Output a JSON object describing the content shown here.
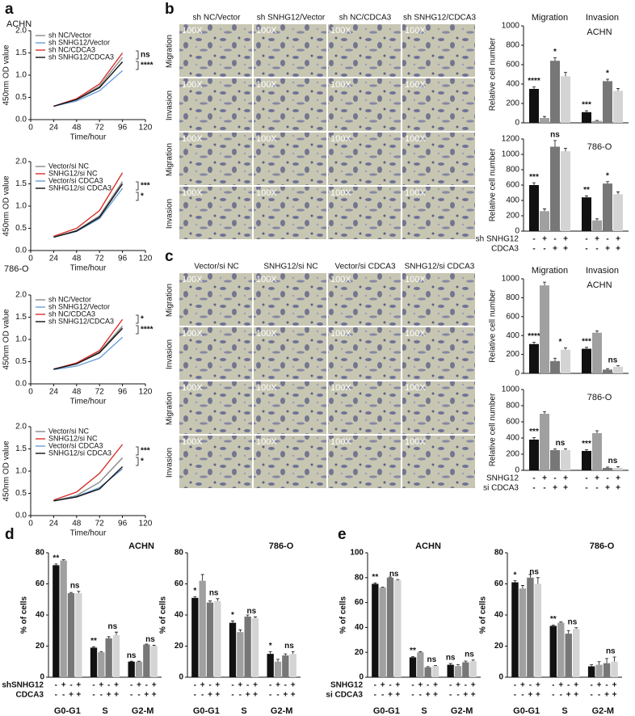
{
  "panel_labels": [
    "a",
    "b",
    "c",
    "d",
    "e"
  ],
  "micrographs": {
    "magnification": "100X",
    "b": {
      "columns": [
        "sh NC/Vector",
        "sh SNHG12/Vector",
        "sh NC/CDCA3",
        "sh SNHG12/CDCA3"
      ],
      "rows": [
        "Migration",
        "Invasion",
        "Migration",
        "Invasion"
      ]
    },
    "c": {
      "columns": [
        "Vector/si NC",
        "SNHG12/si NC",
        "Vector/si CDCA3",
        "SNHG12/si CDCA3"
      ],
      "rows": [
        "Migration",
        "Invasion",
        "Migration",
        "Invasion"
      ]
    }
  },
  "chart_data": [
    {
      "type": "line",
      "title": "ACHN",
      "xlabel": "Time/hour",
      "ylabel": "450nm OD value",
      "x": [
        24,
        48,
        72,
        96
      ],
      "xlim": [
        0,
        120
      ],
      "xticks": [
        0,
        24,
        48,
        72,
        96,
        120
      ],
      "ylim": [
        0,
        2
      ],
      "yticks": [
        {
          "value": 0,
          "label": "0.0"
        },
        {
          "value": 0.5,
          "label": "0.5"
        },
        {
          "value": 1,
          "label": "1.0"
        },
        {
          "value": 1.5,
          "label": "1.5"
        },
        {
          "value": 2,
          "label": "2.0"
        }
      ],
      "annotations": [
        "ns",
        "****"
      ],
      "series": [
        {
          "name": "sh NC/Vector",
          "color": "#8a8a8a",
          "values": [
            0.3,
            0.45,
            0.75,
            1.4
          ]
        },
        {
          "name": "sh SNHG12/Vector",
          "color": "#6a9fd8",
          "values": [
            0.3,
            0.42,
            0.65,
            1.1
          ]
        },
        {
          "name": "sh NC/CDCA3",
          "color": "#d9302a",
          "values": [
            0.3,
            0.47,
            0.8,
            1.5
          ]
        },
        {
          "name": "sh SNHG12/CDCA3",
          "color": "#111111",
          "values": [
            0.3,
            0.45,
            0.72,
            1.3
          ]
        }
      ]
    },
    {
      "type": "line",
      "xlabel": "Time/hour",
      "ylabel": "450nm OD value",
      "x": [
        24,
        48,
        72,
        96
      ],
      "xlim": [
        0,
        120
      ],
      "xticks": [
        0,
        24,
        48,
        72,
        96,
        120
      ],
      "ylim": [
        0,
        2
      ],
      "yticks": [
        {
          "value": 0,
          "label": "0.0"
        },
        {
          "value": 0.5,
          "label": "0.5"
        },
        {
          "value": 1,
          "label": "1.0"
        },
        {
          "value": 1.5,
          "label": "1.5"
        },
        {
          "value": 2,
          "label": "2.0"
        }
      ],
      "annotations": [
        "***",
        "*"
      ],
      "series": [
        {
          "name": "Vector/si NC",
          "color": "#8a8a8a",
          "values": [
            0.3,
            0.45,
            0.78,
            1.55
          ]
        },
        {
          "name": "SNHG12/si NC",
          "color": "#d9302a",
          "values": [
            0.32,
            0.5,
            0.9,
            1.75
          ]
        },
        {
          "name": "Vector/si CDCA3",
          "color": "#6a9fd8",
          "values": [
            0.3,
            0.43,
            0.72,
            1.4
          ]
        },
        {
          "name": "SNHG12/si CDCA3",
          "color": "#111111",
          "values": [
            0.3,
            0.44,
            0.75,
            1.5
          ]
        }
      ]
    },
    {
      "type": "line",
      "title": "786-O",
      "xlabel": "Time/hour",
      "ylabel": "450nm OD value",
      "x": [
        24,
        48,
        72,
        96
      ],
      "xlim": [
        0,
        120
      ],
      "xticks": [
        0,
        24,
        48,
        72,
        96,
        120
      ],
      "ylim": [
        0,
        2
      ],
      "yticks": [
        {
          "value": 0,
          "label": "0.0"
        },
        {
          "value": 0.5,
          "label": "0.5"
        },
        {
          "value": 1,
          "label": "1.0"
        },
        {
          "value": 1.5,
          "label": "1.5"
        },
        {
          "value": 2,
          "label": "2.0"
        }
      ],
      "annotations": [
        "*",
        "****"
      ],
      "series": [
        {
          "name": "sh NC/Vector",
          "color": "#8a8a8a",
          "values": [
            0.33,
            0.45,
            0.72,
            1.3
          ]
        },
        {
          "name": "sh SNHG12/Vector",
          "color": "#6a9fd8",
          "values": [
            0.32,
            0.4,
            0.58,
            1.05
          ]
        },
        {
          "name": "sh NC/CDCA3",
          "color": "#d9302a",
          "values": [
            0.33,
            0.47,
            0.75,
            1.45
          ]
        },
        {
          "name": "sh SNHG12/CDCA3",
          "color": "#111111",
          "values": [
            0.33,
            0.45,
            0.7,
            1.25
          ]
        }
      ]
    },
    {
      "type": "line",
      "xlabel": "Time/hour",
      "ylabel": "450nm OD value",
      "x": [
        24,
        48,
        72,
        96
      ],
      "xlim": [
        0,
        120
      ],
      "xticks": [
        0,
        24,
        48,
        72,
        96,
        120
      ],
      "ylim": [
        0,
        2
      ],
      "yticks": [
        {
          "value": 0,
          "label": "0.0"
        },
        {
          "value": 0.5,
          "label": "0.5"
        },
        {
          "value": 1,
          "label": "1.0"
        },
        {
          "value": 1.5,
          "label": "1.5"
        },
        {
          "value": 2,
          "label": "2.0"
        }
      ],
      "annotations": [
        "***",
        "*"
      ],
      "series": [
        {
          "name": "Vector/si NC",
          "color": "#8a8a8a",
          "values": [
            0.33,
            0.45,
            0.75,
            1.3
          ]
        },
        {
          "name": "SNHG12/si NC",
          "color": "#d9302a",
          "values": [
            0.35,
            0.53,
            0.95,
            1.6
          ]
        },
        {
          "name": "Vector/si CDCA3",
          "color": "#6a9fd8",
          "values": [
            0.33,
            0.43,
            0.63,
            1.05
          ]
        },
        {
          "name": "SNHG12/si CDCA3",
          "color": "#111111",
          "values": [
            0.33,
            0.42,
            0.6,
            1.1
          ]
        }
      ]
    },
    {
      "type": "bar",
      "title": "ACHN",
      "ylabel": "Relative cell number",
      "categories": [
        "Migration",
        "Invasion"
      ],
      "ylim": [
        0,
        1000
      ],
      "yticks": [
        0,
        200,
        400,
        600,
        800,
        1000
      ],
      "series": [
        {
          "color": "#111111",
          "values": [
            350,
            110
          ],
          "errors": [
            20,
            15
          ],
          "annotations": [
            "****",
            "***"
          ]
        },
        {
          "color": "#a0a0a0",
          "values": [
            50,
            20
          ],
          "errors": [
            15,
            5
          ]
        },
        {
          "color": "#777777",
          "values": [
            640,
            430
          ],
          "errors": [
            30,
            20
          ],
          "annotations": [
            "*",
            "*"
          ]
        },
        {
          "color": "#d4d4d4",
          "values": [
            480,
            330
          ],
          "errors": [
            40,
            25
          ]
        }
      ]
    },
    {
      "type": "bar",
      "title": "786-O",
      "ylabel": "Relative cell number",
      "categories": [
        null,
        null
      ],
      "ylim": [
        0,
        1200
      ],
      "yticks": [
        0,
        200,
        400,
        600,
        800,
        1000,
        1200
      ],
      "conditions": [
        {
          "label": "sh SNHG12",
          "signs": [
            "-",
            "+",
            "-",
            "+"
          ]
        },
        {
          "label": "CDCA3",
          "signs": [
            "-",
            "-",
            "+",
            "+"
          ]
        }
      ],
      "series": [
        {
          "color": "#111111",
          "values": [
            600,
            440
          ],
          "errors": [
            30,
            20
          ],
          "annotations": [
            "***",
            "**"
          ]
        },
        {
          "color": "#a0a0a0",
          "values": [
            260,
            140
          ],
          "errors": [
            30,
            20
          ]
        },
        {
          "color": "#777777",
          "values": [
            1100,
            620
          ],
          "errors": [
            80,
            25
          ],
          "annotations": [
            "ns",
            "*"
          ]
        },
        {
          "color": "#d4d4d4",
          "values": [
            1040,
            480
          ],
          "errors": [
            40,
            30
          ]
        }
      ]
    },
    {
      "type": "bar",
      "title": "ACHN",
      "ylabel": "Relative cell number",
      "categories": [
        "Migration",
        "Invasion"
      ],
      "ylim": [
        0,
        1000
      ],
      "yticks": [
        0,
        200,
        400,
        600,
        800,
        1000
      ],
      "series": [
        {
          "color": "#111111",
          "values": [
            310,
            260
          ],
          "errors": [
            20,
            15
          ],
          "annotations": [
            "****",
            "***"
          ]
        },
        {
          "color": "#a0a0a0",
          "values": [
            930,
            430
          ],
          "errors": [
            35,
            20
          ]
        },
        {
          "color": "#777777",
          "values": [
            130,
            40
          ],
          "errors": [
            30,
            10
          ]
        },
        {
          "color": "#d4d4d4",
          "values": [
            250,
            70
          ],
          "errors": [
            20,
            10
          ],
          "annotations": [
            "*",
            "ns"
          ]
        }
      ]
    },
    {
      "type": "bar",
      "title": "786-O",
      "ylabel": "Relative cell number",
      "categories": [
        null,
        null
      ],
      "ylim": [
        0,
        1000
      ],
      "yticks": [
        0,
        200,
        400,
        600,
        800,
        1000
      ],
      "conditions": [
        {
          "label": "SNHG12",
          "signs": [
            "-",
            "+",
            "-",
            "+"
          ]
        },
        {
          "label": "si CDCA3",
          "signs": [
            "-",
            "-",
            "+",
            "+"
          ]
        }
      ],
      "series": [
        {
          "color": "#111111",
          "values": [
            380,
            240
          ],
          "errors": [
            25,
            15
          ],
          "annotations": [
            "***",
            "***"
          ]
        },
        {
          "color": "#a0a0a0",
          "values": [
            700,
            460
          ],
          "errors": [
            25,
            30
          ]
        },
        {
          "color": "#777777",
          "values": [
            250,
            30
          ],
          "errors": [
            15,
            10
          ]
        },
        {
          "color": "#d4d4d4",
          "values": [
            250,
            30
          ],
          "errors": [
            15,
            15
          ],
          "annotations": [
            "ns",
            "ns"
          ]
        }
      ]
    },
    {
      "type": "bar",
      "title": "ACHN",
      "ylabel": "% of cells",
      "categories": [
        "G0-G1",
        "S",
        "G2-M"
      ],
      "ylim": [
        0,
        80
      ],
      "yticks": [
        0,
        20,
        40,
        60,
        80
      ],
      "conditions": [
        {
          "label": "shSNHG12",
          "signs": [
            "-",
            "+",
            "-",
            "+"
          ]
        },
        {
          "label": "CDCA3",
          "signs": [
            "-",
            "-",
            "+",
            "+"
          ]
        }
      ],
      "series": [
        {
          "color": "#111111",
          "values": [
            72,
            19,
            10
          ],
          "errors": [
            0.8,
            0.6,
            0.3
          ],
          "annotations": [
            "**",
            "**",
            "ns"
          ]
        },
        {
          "color": "#a0a0a0",
          "values": [
            75,
            16,
            10
          ],
          "errors": [
            0.5,
            0.5,
            0.3
          ]
        },
        {
          "color": "#777777",
          "values": [
            54,
            25,
            21
          ],
          "errors": [
            0.5,
            1,
            0.3
          ]
        },
        {
          "color": "#d4d4d4",
          "values": [
            54,
            27,
            20
          ],
          "errors": [
            1.2,
            2,
            0.5
          ],
          "annotations": [
            "ns",
            "ns",
            "ns"
          ]
        }
      ]
    },
    {
      "type": "bar",
      "title": "786-O",
      "ylabel": "% of cells",
      "categories": [
        "G0-G1",
        "S",
        "G2-M"
      ],
      "ylim": [
        0,
        80
      ],
      "yticks": [
        0,
        20,
        40,
        60,
        80
      ],
      "conditions": [
        {
          "signs": [
            "-",
            "+",
            "-",
            "+"
          ]
        },
        {
          "signs": [
            "-",
            "-",
            "+",
            "+"
          ]
        }
      ],
      "series": [
        {
          "color": "#111111",
          "values": [
            51,
            35,
            15
          ],
          "errors": [
            0.8,
            1.2,
            1.5
          ],
          "annotations": [
            "*",
            "*",
            "*"
          ]
        },
        {
          "color": "#a0a0a0",
          "values": [
            62,
            29,
            10
          ],
          "errors": [
            4,
            1.5,
            1.5
          ]
        },
        {
          "color": "#777777",
          "values": [
            48,
            39,
            14
          ],
          "errors": [
            1,
            1,
            1
          ]
        },
        {
          "color": "#d4d4d4",
          "values": [
            49,
            38,
            15
          ],
          "errors": [
            1.5,
            0.8,
            1.5
          ],
          "annotations": [
            "ns",
            "ns",
            "ns"
          ]
        }
      ]
    },
    {
      "type": "bar",
      "title": "ACHN",
      "ylabel": "% of cells",
      "categories": [
        "G0-G1",
        "S",
        "G2-M"
      ],
      "ylim": [
        0,
        100
      ],
      "yticks": [
        0,
        20,
        40,
        60,
        80,
        100
      ],
      "conditions": [
        {
          "label": "SNHG12",
          "signs": [
            "-",
            "+",
            "-",
            "+"
          ]
        },
        {
          "label": "si CDCA3",
          "signs": [
            "-",
            "-",
            "+",
            "+"
          ]
        }
      ],
      "series": [
        {
          "color": "#111111",
          "values": [
            75,
            16,
            10
          ],
          "errors": [
            0.8,
            0.5,
            1
          ],
          "annotations": [
            "**",
            "**",
            "ns"
          ]
        },
        {
          "color": "#a0a0a0",
          "values": [
            72,
            20,
            9
          ],
          "errors": [
            0.5,
            0.5,
            1
          ]
        },
        {
          "color": "#777777",
          "values": [
            80,
            8,
            12
          ],
          "errors": [
            0.5,
            0.5,
            1
          ]
        },
        {
          "color": "#d4d4d4",
          "values": [
            78,
            9,
            13
          ],
          "errors": [
            0.5,
            0.5,
            0.8
          ],
          "annotations": [
            "ns",
            "ns",
            "ns"
          ]
        }
      ]
    },
    {
      "type": "bar",
      "title": "786-O",
      "ylabel": "% of cells",
      "categories": [
        "G0-G1",
        "S",
        "G2-M"
      ],
      "ylim": [
        0,
        80
      ],
      "yticks": [
        0,
        20,
        40,
        60,
        80
      ],
      "conditions": [
        {
          "signs": [
            "-",
            "+",
            "-",
            "+"
          ]
        },
        {
          "signs": [
            "-",
            "-",
            "+",
            "+"
          ]
        }
      ],
      "series": [
        {
          "color": "#111111",
          "values": [
            61,
            33,
            7
          ],
          "errors": [
            1,
            0.5,
            1
          ],
          "annotations": [
            "*",
            "**",
            null
          ]
        },
        {
          "color": "#a0a0a0",
          "values": [
            57,
            35,
            8
          ],
          "errors": [
            2,
            0.5,
            2
          ]
        },
        {
          "color": "#777777",
          "values": [
            64,
            28,
            9
          ],
          "errors": [
            2,
            2,
            3
          ]
        },
        {
          "color": "#d4d4d4",
          "values": [
            60,
            31,
            10
          ],
          "errors": [
            4,
            0.8,
            3
          ],
          "annotations": [
            "ns",
            "ns",
            "ns"
          ]
        }
      ]
    }
  ]
}
